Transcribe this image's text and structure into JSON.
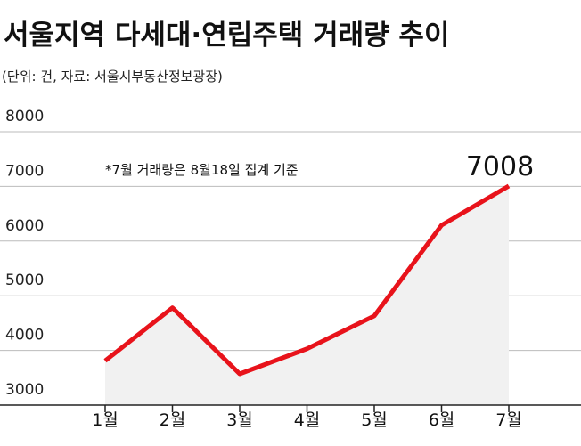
{
  "chart_data": {
    "type": "line",
    "title": "서울지역 다세대·연립주택 거래량 추이",
    "subtitle": "(단위: 건, 자료: 서울시부동산정보광장)",
    "annotation": "*7월 거래량은 8월18일 집계 기준",
    "categories": [
      "1월",
      "2월",
      "3월",
      "4월",
      "5월",
      "6월",
      "7월"
    ],
    "values": [
      3810,
      4780,
      3570,
      4030,
      4630,
      6290,
      7008
    ],
    "value_labels": [
      null,
      null,
      null,
      null,
      null,
      null,
      "7008"
    ],
    "color": "#e8131b",
    "area_color": "#f1f1f1",
    "ylim": [
      3000,
      8000
    ],
    "yticks": [
      3000,
      4000,
      5000,
      6000,
      7000,
      8000
    ],
    "grid": true
  }
}
